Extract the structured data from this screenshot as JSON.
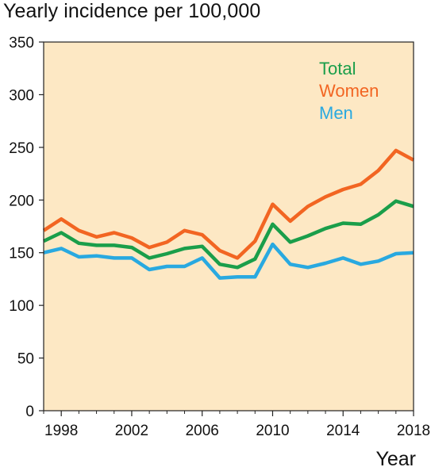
{
  "chart_data": {
    "type": "line",
    "title": "Yearly incidence per 100,000",
    "xlabel": "Year",
    "ylabel": "",
    "xlim": [
      1997,
      2018
    ],
    "ylim": [
      0,
      350
    ],
    "yticks": [
      0,
      50,
      100,
      150,
      200,
      250,
      300,
      350
    ],
    "xticks": [
      1998,
      2002,
      2006,
      2010,
      2014,
      2018
    ],
    "background_color": "#fde8c4",
    "grid": false,
    "legend_position": "top-right",
    "x": [
      1997,
      1998,
      1999,
      2000,
      2001,
      2002,
      2003,
      2004,
      2005,
      2006,
      2007,
      2008,
      2009,
      2010,
      2011,
      2012,
      2013,
      2014,
      2015,
      2016,
      2017,
      2018
    ],
    "series": [
      {
        "name": "Total",
        "color": "#1a9e4a",
        "values": [
          161,
          169,
          159,
          157,
          157,
          155,
          145,
          149,
          154,
          156,
          139,
          136,
          144,
          177,
          160,
          166,
          173,
          178,
          177,
          186,
          199,
          194
        ]
      },
      {
        "name": "Women",
        "color": "#f26522",
        "values": [
          171,
          182,
          171,
          165,
          169,
          164,
          155,
          160,
          171,
          167,
          152,
          145,
          161,
          196,
          180,
          194,
          203,
          210,
          215,
          228,
          247,
          238
        ]
      },
      {
        "name": "Men",
        "color": "#29a9e0",
        "values": [
          150,
          154,
          146,
          147,
          145,
          145,
          134,
          137,
          137,
          145,
          126,
          127,
          127,
          158,
          139,
          136,
          140,
          145,
          139,
          142,
          149,
          150
        ]
      }
    ]
  }
}
